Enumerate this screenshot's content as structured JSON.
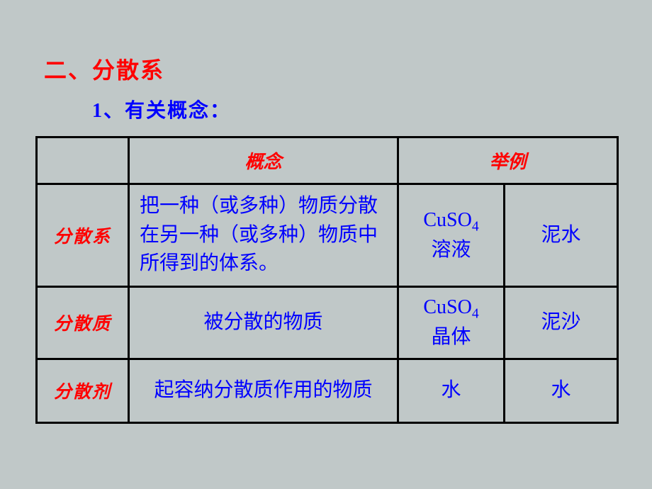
{
  "heading": "二、分散系",
  "subheading": "1、有关概念：",
  "headers": {
    "concept": "概念",
    "example": "举例"
  },
  "rows": [
    {
      "term": "分散系",
      "concept": "把一种（或多种）物质分散在另一种（或多种）物质中所得到的体系。",
      "ex1_pre": "CuSO",
      "ex1_sub": "4",
      "ex1_post": "溶液",
      "ex2": "泥水"
    },
    {
      "term": "分散质",
      "concept": "被分散的物质",
      "ex1_pre": "CuSO",
      "ex1_sub": "4",
      "ex1_post": "晶体",
      "ex2": "泥沙"
    },
    {
      "term": "分散剂",
      "concept": "起容纳分散质作用的物质",
      "ex1": "水",
      "ex2": "水"
    }
  ]
}
